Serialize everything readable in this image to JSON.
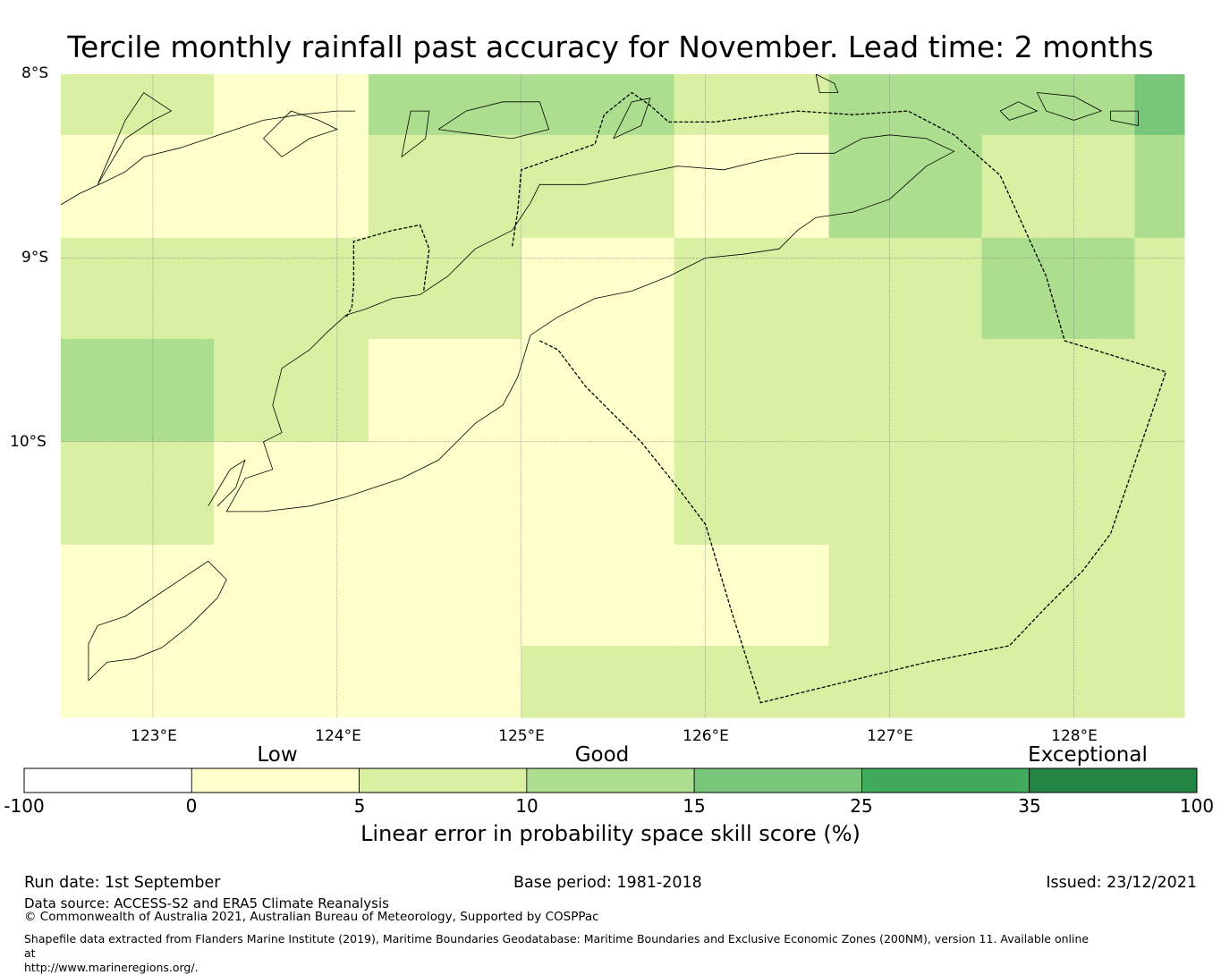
{
  "title": "Tercile monthly rainfall past accuracy for November. Lead time: 2 months",
  "map": {
    "lat_labels": [
      "8°S",
      "9°S",
      "10°S"
    ],
    "lon_labels": [
      "123°E",
      "124°E",
      "125°E",
      "126°E",
      "127°E",
      "128°E"
    ],
    "extent": {
      "lon_min": 122.5,
      "lon_max": 128.6,
      "lat_min": -11.5,
      "lat_max": -8.0
    },
    "grid_cells": {
      "lon_edges": [
        122.5,
        123.33,
        124.17,
        125.0,
        125.83,
        126.67,
        127.5,
        128.33,
        128.6
      ],
      "lat_edges": [
        -8.0,
        -8.33,
        -8.89,
        -9.44,
        -10.0,
        -10.56,
        -11.11,
        -11.5
      ],
      "class_rows": [
        [
          2,
          1,
          3,
          3,
          2,
          3,
          3,
          4
        ],
        [
          1,
          1,
          2,
          2,
          1,
          3,
          2,
          3
        ],
        [
          2,
          2,
          2,
          1,
          2,
          2,
          3,
          2
        ],
        [
          3,
          2,
          1,
          1,
          2,
          2,
          2,
          2
        ],
        [
          2,
          1,
          1,
          1,
          2,
          2,
          2,
          2
        ],
        [
          1,
          1,
          1,
          1,
          1,
          2,
          2,
          2
        ],
        [
          1,
          1,
          1,
          2,
          2,
          2,
          2,
          2
        ]
      ]
    },
    "eez_boundary": [
      [
        125.1,
        -9.45
      ],
      [
        125.2,
        -9.5
      ],
      [
        125.35,
        -9.7
      ],
      [
        125.65,
        -10.0
      ],
      [
        125.85,
        -10.25
      ],
      [
        126.0,
        -10.45
      ],
      [
        126.15,
        -10.95
      ],
      [
        126.3,
        -11.42
      ],
      [
        126.5,
        -11.37
      ],
      [
        127.2,
        -11.2
      ],
      [
        127.65,
        -11.11
      ],
      [
        127.85,
        -10.9
      ],
      [
        128.05,
        -10.7
      ],
      [
        128.2,
        -10.5
      ],
      [
        128.5,
        -9.62
      ],
      [
        127.95,
        -9.45
      ],
      [
        127.85,
        -9.1
      ],
      [
        127.6,
        -8.55
      ],
      [
        127.35,
        -8.33
      ],
      [
        127.1,
        -8.2
      ],
      [
        126.8,
        -8.22
      ],
      [
        126.5,
        -8.2
      ],
      [
        126.05,
        -8.26
      ],
      [
        125.8,
        -8.26
      ],
      [
        125.7,
        -8.17
      ],
      [
        125.6,
        -8.1
      ],
      [
        125.45,
        -8.22
      ],
      [
        125.4,
        -8.38
      ],
      [
        125.0,
        -8.52
      ],
      [
        124.98,
        -8.75
      ],
      [
        124.95,
        -8.94
      ]
    ],
    "eez_boundary_2": [
      [
        124.05,
        -9.32
      ],
      [
        124.08,
        -9.27
      ],
      [
        124.09,
        -9.15
      ],
      [
        124.09,
        -8.91
      ],
      [
        124.3,
        -8.85
      ],
      [
        124.45,
        -8.82
      ],
      [
        124.5,
        -8.95
      ],
      [
        124.47,
        -9.18
      ]
    ],
    "coastlines": [
      [
        [
          122.5,
          -8.71
        ],
        [
          122.6,
          -8.65
        ],
        [
          122.75,
          -8.58
        ],
        [
          122.85,
          -8.53
        ],
        [
          122.95,
          -8.45
        ],
        [
          123.15,
          -8.4
        ],
        [
          123.3,
          -8.35
        ],
        [
          123.45,
          -8.3
        ],
        [
          123.6,
          -8.25
        ],
        [
          123.8,
          -8.22
        ],
        [
          124.0,
          -8.2
        ],
        [
          124.1,
          -8.2
        ]
      ],
      [
        [
          124.05,
          -9.31
        ],
        [
          124.15,
          -9.28
        ],
        [
          124.3,
          -9.22
        ],
        [
          124.45,
          -9.2
        ],
        [
          124.6,
          -9.1
        ],
        [
          124.75,
          -8.95
        ],
        [
          124.95,
          -8.85
        ],
        [
          125.05,
          -8.7
        ],
        [
          125.1,
          -8.6
        ],
        [
          125.35,
          -8.6
        ],
        [
          125.6,
          -8.55
        ],
        [
          125.85,
          -8.5
        ],
        [
          126.1,
          -8.52
        ],
        [
          126.3,
          -8.47
        ],
        [
          126.5,
          -8.43
        ],
        [
          126.7,
          -8.43
        ],
        [
          126.85,
          -8.35
        ],
        [
          127.0,
          -8.33
        ],
        [
          127.2,
          -8.35
        ],
        [
          127.35,
          -8.42
        ],
        [
          127.2,
          -8.5
        ],
        [
          127.0,
          -8.68
        ],
        [
          126.8,
          -8.75
        ],
        [
          126.6,
          -8.78
        ],
        [
          126.5,
          -8.85
        ],
        [
          126.4,
          -8.95
        ],
        [
          126.2,
          -8.98
        ],
        [
          126.0,
          -9.0
        ],
        [
          125.8,
          -9.1
        ],
        [
          125.6,
          -9.18
        ],
        [
          125.4,
          -9.22
        ],
        [
          125.2,
          -9.32
        ],
        [
          125.05,
          -9.42
        ],
        [
          124.98,
          -9.65
        ],
        [
          124.9,
          -9.8
        ],
        [
          124.75,
          -9.9
        ],
        [
          124.55,
          -10.1
        ],
        [
          124.35,
          -10.2
        ],
        [
          124.05,
          -10.3
        ],
        [
          123.85,
          -10.35
        ],
        [
          123.6,
          -10.38
        ],
        [
          123.4,
          -10.38
        ],
        [
          123.5,
          -10.2
        ],
        [
          123.65,
          -10.15
        ],
        [
          123.6,
          -10.0
        ],
        [
          123.7,
          -9.95
        ],
        [
          123.65,
          -9.8
        ],
        [
          123.7,
          -9.6
        ],
        [
          123.85,
          -9.5
        ],
        [
          123.95,
          -9.4
        ],
        [
          124.05,
          -9.31
        ]
      ],
      [
        [
          122.65,
          -11.3
        ],
        [
          122.75,
          -11.2
        ],
        [
          122.9,
          -11.18
        ],
        [
          123.05,
          -11.12
        ],
        [
          123.2,
          -11.0
        ],
        [
          123.35,
          -10.85
        ],
        [
          123.4,
          -10.75
        ],
        [
          123.3,
          -10.65
        ],
        [
          123.15,
          -10.75
        ],
        [
          123.0,
          -10.85
        ],
        [
          122.85,
          -10.95
        ],
        [
          122.7,
          -11.0
        ],
        [
          122.65,
          -11.1
        ],
        [
          122.65,
          -11.3
        ]
      ],
      [
        [
          123.3,
          -10.35
        ],
        [
          123.42,
          -10.15
        ],
        [
          123.5,
          -10.1
        ],
        [
          123.45,
          -10.25
        ],
        [
          123.35,
          -10.35
        ]
      ],
      [
        [
          122.7,
          -8.6
        ],
        [
          122.85,
          -8.25
        ],
        [
          122.95,
          -8.1
        ],
        [
          123.1,
          -8.2
        ],
        [
          123.0,
          -8.25
        ],
        [
          122.85,
          -8.35
        ],
        [
          122.7,
          -8.6
        ]
      ],
      [
        [
          123.6,
          -8.35
        ],
        [
          123.75,
          -8.2
        ],
        [
          123.9,
          -8.25
        ],
        [
          124.0,
          -8.3
        ],
        [
          123.85,
          -8.35
        ],
        [
          123.7,
          -8.45
        ],
        [
          123.6,
          -8.35
        ]
      ],
      [
        [
          124.35,
          -8.45
        ],
        [
          124.4,
          -8.2
        ],
        [
          124.5,
          -8.2
        ],
        [
          124.48,
          -8.35
        ],
        [
          124.35,
          -8.45
        ]
      ],
      [
        [
          124.55,
          -8.3
        ],
        [
          124.7,
          -8.2
        ],
        [
          124.9,
          -8.15
        ],
        [
          125.1,
          -8.15
        ],
        [
          125.15,
          -8.3
        ],
        [
          124.95,
          -8.35
        ],
        [
          124.7,
          -8.32
        ],
        [
          124.55,
          -8.3
        ]
      ],
      [
        [
          125.5,
          -8.35
        ],
        [
          125.6,
          -8.15
        ],
        [
          125.7,
          -8.13
        ],
        [
          125.65,
          -8.28
        ],
        [
          125.5,
          -8.35
        ]
      ],
      [
        [
          126.6,
          -8.0
        ],
        [
          126.7,
          -8.05
        ],
        [
          126.72,
          -8.1
        ],
        [
          126.62,
          -8.1
        ],
        [
          126.6,
          -8.0
        ]
      ],
      [
        [
          127.6,
          -8.2
        ],
        [
          127.7,
          -8.15
        ],
        [
          127.8,
          -8.2
        ],
        [
          127.65,
          -8.25
        ],
        [
          127.6,
          -8.2
        ]
      ],
      [
        [
          127.8,
          -8.1
        ],
        [
          128.0,
          -8.12
        ],
        [
          128.15,
          -8.2
        ],
        [
          128.0,
          -8.25
        ],
        [
          127.85,
          -8.2
        ],
        [
          127.8,
          -8.1
        ]
      ],
      [
        [
          128.2,
          -8.2
        ],
        [
          128.35,
          -8.2
        ],
        [
          128.35,
          -8.28
        ],
        [
          128.2,
          -8.25
        ],
        [
          128.2,
          -8.2
        ]
      ]
    ]
  },
  "colorbar": {
    "category_labels": [
      "Low",
      "Good",
      "Exceptional"
    ],
    "tick_labels": [
      "-100",
      "0",
      "5",
      "10",
      "15",
      "25",
      "35",
      "100"
    ],
    "colors": [
      "#ffffff",
      "#ffffcc",
      "#d9f0a3",
      "#addd8e",
      "#78c679",
      "#41ab5d",
      "#238443"
    ],
    "title": "Linear error in probability space skill score (%)"
  },
  "footer": {
    "run_date": "Run date: 1st September",
    "base_period": "Base period: 1981-2018",
    "issued": "Issued: 23/12/2021",
    "data_source": "Data source: ACCESS-S2 and ERA5 Climate Reanalysis",
    "copyright": "© Commonwealth of Australia 2021, Australian Bureau of Meteorology, Supported by COSPPac",
    "shapefile_line1": "Shapefile data extracted from Flanders Marine Institute (2019), Maritime Boundaries Geodatabase: Maritime Boundaries and Exclusive Economic Zones (200NM), version 11. Available online at",
    "shapefile_line2": "http://www.marineregions.org/."
  }
}
